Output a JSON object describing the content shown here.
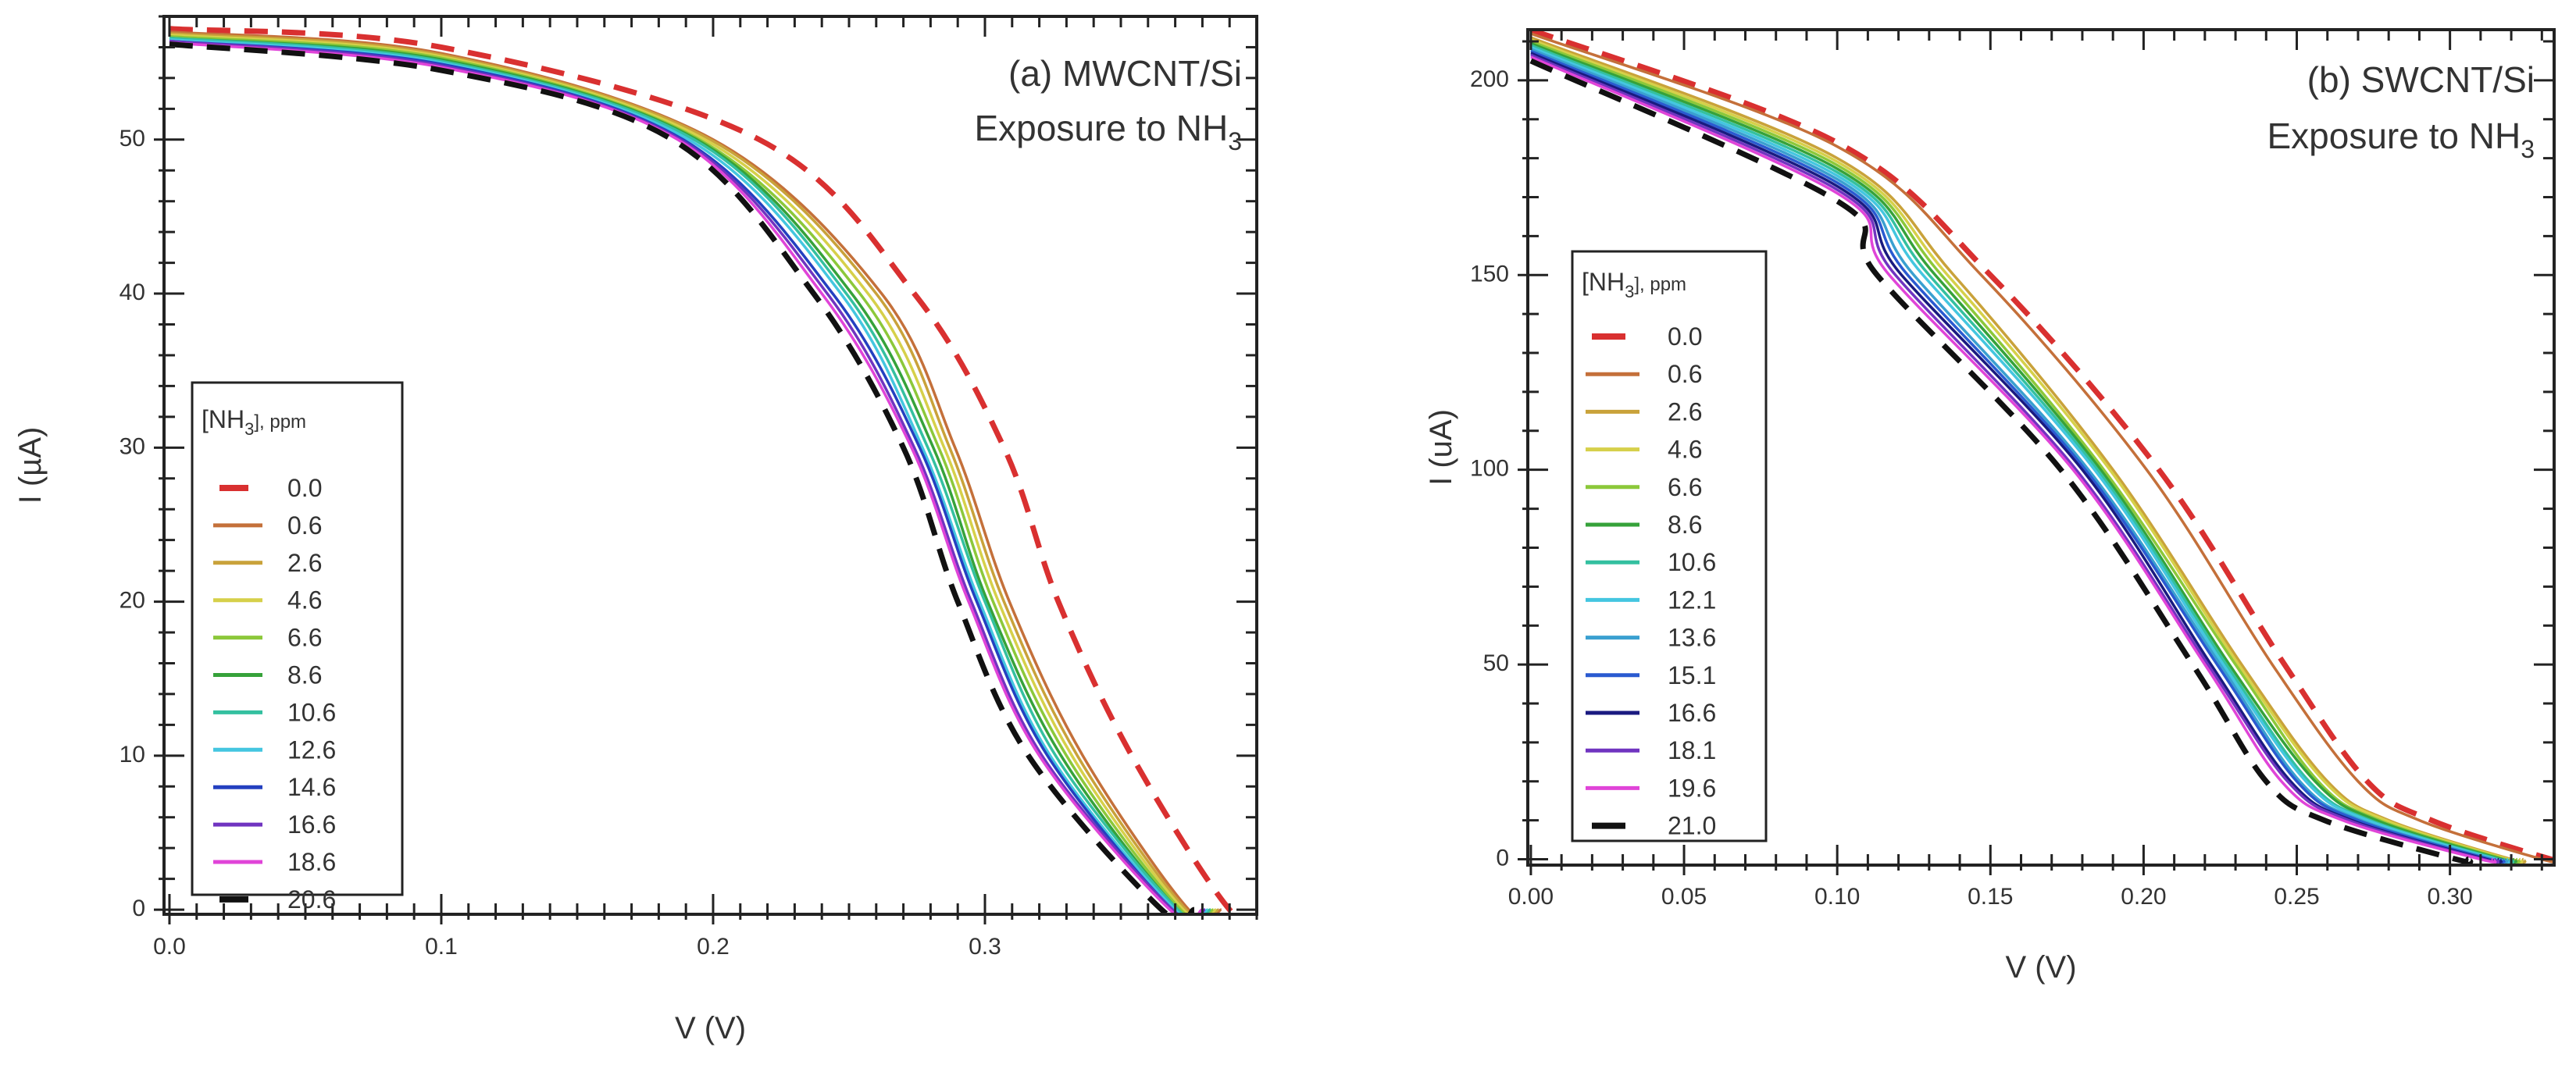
{
  "chart_data": [
    {
      "type": "line",
      "title_line1": "(a) MWCNT/Si",
      "title_line2": "Exposure to NH",
      "title_sub": "3",
      "xlabel": "V (V)",
      "ylabel": "I (µA)",
      "xlim": [
        -0.002,
        0.4
      ],
      "ylim": [
        -0.3,
        58
      ],
      "xticks": [
        0.0,
        0.1,
        0.2,
        0.3
      ],
      "xtick_labels": [
        "0.0",
        "0.1",
        "0.2",
        "0.3"
      ],
      "x_minor_step": 0.01,
      "yticks": [
        0,
        10,
        20,
        30,
        40,
        50
      ],
      "ytick_labels": [
        "0",
        "10",
        "20",
        "30",
        "40",
        "50"
      ],
      "y_minor_step": 2,
      "legend": {
        "title": "[NH",
        "title_sub": "3",
        "title_suffix": "], ppm",
        "placement": "left-middle"
      },
      "tail": 0.012,
      "series": [
        {
          "name": "0.0",
          "color": "#d93030",
          "dash": true,
          "v": [
            0,
            0.1,
            0.217,
            0.274,
            0.307,
            0.327,
            0.354,
            0.39
          ],
          "i": [
            57.2,
            56.0,
            50,
            40,
            30,
            20,
            10,
            0
          ]
        },
        {
          "name": "0.6",
          "color": "#c4703a",
          "v": [
            0,
            0.1,
            0.2,
            0.262,
            0.289,
            0.309,
            0.336,
            0.375
          ],
          "i": [
            57.0,
            55.6,
            50,
            40,
            30,
            20,
            10,
            0
          ]
        },
        {
          "name": "2.6",
          "color": "#c9a23a",
          "v": [
            0,
            0.1,
            0.199,
            0.26,
            0.287,
            0.307,
            0.334,
            0.374
          ],
          "i": [
            56.9,
            55.5,
            50,
            40,
            30,
            20,
            10,
            0
          ]
        },
        {
          "name": "4.6",
          "color": "#d6d04a",
          "v": [
            0,
            0.1,
            0.197,
            0.257,
            0.285,
            0.305,
            0.332,
            0.373
          ],
          "i": [
            56.8,
            55.4,
            50,
            40,
            30,
            20,
            10,
            0
          ]
        },
        {
          "name": "6.6",
          "color": "#8cc83a",
          "v": [
            0,
            0.1,
            0.195,
            0.254,
            0.283,
            0.303,
            0.33,
            0.372
          ],
          "i": [
            56.7,
            55.3,
            50,
            40,
            30,
            20,
            10,
            0
          ]
        },
        {
          "name": "8.6",
          "color": "#36a23a",
          "v": [
            0,
            0.1,
            0.194,
            0.251,
            0.281,
            0.301,
            0.328,
            0.371
          ],
          "i": [
            56.6,
            55.2,
            50,
            40,
            30,
            20,
            10,
            0
          ]
        },
        {
          "name": "10.6",
          "color": "#34c0a0",
          "v": [
            0,
            0.1,
            0.193,
            0.249,
            0.279,
            0.3,
            0.326,
            0.371
          ],
          "i": [
            56.6,
            55.1,
            50,
            40,
            30,
            20,
            10,
            0
          ]
        },
        {
          "name": "12.6",
          "color": "#44c6e0",
          "v": [
            0,
            0.1,
            0.191,
            0.247,
            0.277,
            0.298,
            0.324,
            0.37
          ],
          "i": [
            56.5,
            55.0,
            50,
            40,
            30,
            20,
            10,
            0
          ]
        },
        {
          "name": "14.6",
          "color": "#2440c0",
          "v": [
            0,
            0.1,
            0.189,
            0.244,
            0.276,
            0.297,
            0.323,
            0.369
          ],
          "i": [
            56.4,
            54.9,
            50,
            40,
            30,
            20,
            10,
            0
          ]
        },
        {
          "name": "16.6",
          "color": "#7034c0",
          "v": [
            0,
            0.1,
            0.188,
            0.242,
            0.274,
            0.295,
            0.321,
            0.369
          ],
          "i": [
            56.4,
            54.8,
            50,
            40,
            30,
            20,
            10,
            0
          ]
        },
        {
          "name": "18.6",
          "color": "#e044d8",
          "v": [
            0,
            0.1,
            0.187,
            0.24,
            0.273,
            0.294,
            0.32,
            0.368
          ],
          "i": [
            56.3,
            54.7,
            50,
            40,
            30,
            20,
            10,
            0
          ]
        },
        {
          "name": "20.6",
          "color": "#111111",
          "dash": true,
          "v": [
            0,
            0.1,
            0.185,
            0.237,
            0.27,
            0.29,
            0.316,
            0.365
          ],
          "i": [
            56.2,
            54.5,
            50,
            40,
            30,
            20,
            10,
            0
          ]
        }
      ]
    },
    {
      "type": "line",
      "title_line1": "(b) SWCNT/Si",
      "title_line2": "Exposure to NH",
      "title_sub": "3",
      "xlabel": "V (V)",
      "ylabel": "I (uA)",
      "xlim": [
        -0.001,
        0.334
      ],
      "ylim": [
        -1.5,
        213
      ],
      "xticks": [
        0.0,
        0.05,
        0.1,
        0.15,
        0.2,
        0.25,
        0.3
      ],
      "xtick_labels": [
        "0.00",
        "0.05",
        "0.10",
        "0.15",
        "0.20",
        "0.25",
        "0.30"
      ],
      "x_minor_step": 0.01,
      "yticks": [
        0,
        50,
        100,
        150,
        200
      ],
      "ytick_labels": [
        "0",
        "50",
        "100",
        "150",
        "200"
      ],
      "y_minor_step": 10,
      "legend": {
        "title": "[NH",
        "title_sub": "3",
        "title_suffix": "], ppm",
        "placement": "left-middle"
      },
      "tail": 0.004,
      "series": [
        {
          "name": "0.0",
          "color": "#d93030",
          "dash": true,
          "v": [
            0,
            0.1,
            0.15,
            0.205,
            0.246,
            0.273,
            0.294,
            0.333
          ],
          "i": [
            213,
            184,
            150,
            100,
            50,
            20,
            10,
            0
          ]
        },
        {
          "name": "0.6",
          "color": "#c4703a",
          "v": [
            0,
            0.1,
            0.147,
            0.201,
            0.242,
            0.27,
            0.29,
            0.33
          ],
          "i": [
            212,
            183,
            150,
            100,
            50,
            20,
            10,
            0
          ]
        },
        {
          "name": "2.6",
          "color": "#c9a23a",
          "v": [
            0,
            0.1,
            0.138,
            0.19,
            0.232,
            0.26,
            0.28,
            0.32
          ],
          "i": [
            211,
            180,
            150,
            100,
            50,
            20,
            10,
            0
          ]
        },
        {
          "name": "4.6",
          "color": "#d6d04a",
          "v": [
            0,
            0.1,
            0.136,
            0.189,
            0.231,
            0.259,
            0.279,
            0.319
          ],
          "i": [
            210.5,
            179.1,
            150,
            100,
            50,
            20,
            10,
            0
          ]
        },
        {
          "name": "6.6",
          "color": "#8cc83a",
          "v": [
            0,
            0.1,
            0.134,
            0.187,
            0.23,
            0.257,
            0.277,
            0.318
          ],
          "i": [
            210,
            178.2,
            150,
            100,
            50,
            20,
            10,
            0
          ]
        },
        {
          "name": "8.6",
          "color": "#36a23a",
          "v": [
            0,
            0.1,
            0.132,
            0.186,
            0.228,
            0.256,
            0.276,
            0.317
          ],
          "i": [
            209.5,
            177.3,
            150,
            100,
            50,
            20,
            10,
            0
          ]
        },
        {
          "name": "10.6",
          "color": "#34c0a0",
          "v": [
            0,
            0.1,
            0.13,
            0.185,
            0.227,
            0.254,
            0.274,
            0.316
          ],
          "i": [
            209,
            176.4,
            150,
            100,
            50,
            20,
            10,
            0
          ]
        },
        {
          "name": "12.1",
          "color": "#44c6e0",
          "v": [
            0,
            0.1,
            0.128,
            0.184,
            0.226,
            0.253,
            0.273,
            0.315
          ],
          "i": [
            208.5,
            175.5,
            150,
            100,
            50,
            20,
            10,
            0
          ]
        },
        {
          "name": "13.6",
          "color": "#3aa0d0",
          "v": [
            0,
            0.1,
            0.125,
            0.182,
            0.225,
            0.251,
            0.271,
            0.314
          ],
          "i": [
            208,
            174.6,
            150,
            100,
            50,
            20,
            10,
            0
          ]
        },
        {
          "name": "15.1",
          "color": "#2a5ad0",
          "v": [
            0,
            0.1,
            0.123,
            0.181,
            0.224,
            0.25,
            0.27,
            0.313
          ],
          "i": [
            207.5,
            173.7,
            150,
            100,
            50,
            20,
            10,
            0
          ]
        },
        {
          "name": "16.6",
          "color": "#1a1a80",
          "v": [
            0,
            0.1,
            0.121,
            0.18,
            0.222,
            0.248,
            0.268,
            0.312
          ],
          "i": [
            207,
            172.8,
            150,
            100,
            50,
            20,
            10,
            0
          ]
        },
        {
          "name": "18.1",
          "color": "#7034c0",
          "v": [
            0,
            0.1,
            0.119,
            0.178,
            0.221,
            0.247,
            0.267,
            0.311
          ],
          "i": [
            206.5,
            171.9,
            150,
            100,
            50,
            20,
            10,
            0
          ]
        },
        {
          "name": "19.6",
          "color": "#e044d8",
          "v": [
            0,
            0.1,
            0.117,
            0.177,
            0.22,
            0.245,
            0.265,
            0.31
          ],
          "i": [
            206,
            171,
            150,
            100,
            50,
            20,
            10,
            0
          ]
        },
        {
          "name": "21.0",
          "color": "#111111",
          "dash": true,
          "v": [
            0,
            0.1,
            0.113,
            0.173,
            0.216,
            0.24,
            0.259,
            0.302
          ],
          "i": [
            205,
            169,
            150,
            100,
            50,
            20,
            10,
            0
          ]
        }
      ]
    }
  ]
}
